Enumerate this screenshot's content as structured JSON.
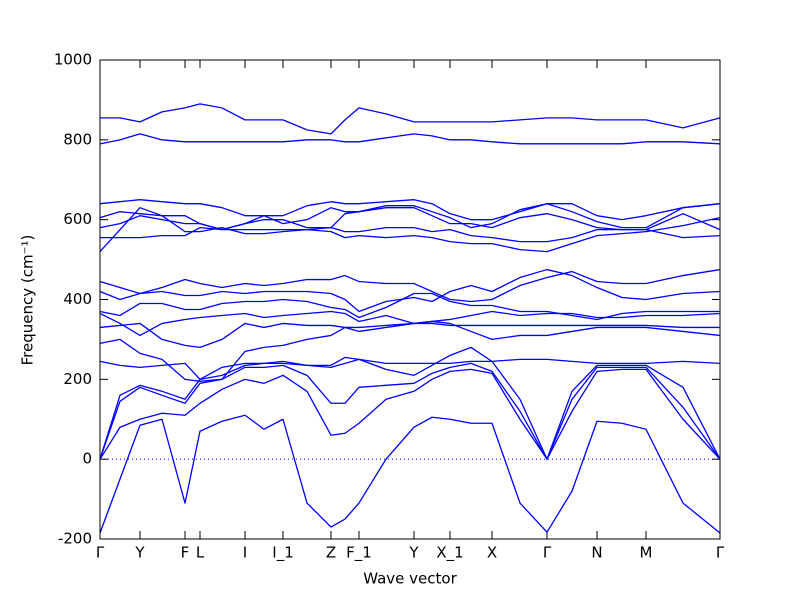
{
  "chart_data": {
    "type": "line",
    "xlabel": "Wave vector",
    "ylabel": "Frequency (cm⁻¹)",
    "xlim": [
      0,
      620
    ],
    "xticks": [
      {
        "value": 0,
        "label": "Γ"
      },
      {
        "value": 40,
        "label": "Y"
      },
      {
        "value": 85,
        "label": "F"
      },
      {
        "value": 100,
        "label": "L"
      },
      {
        "value": 145,
        "label": "I"
      },
      {
        "value": 183,
        "label": "I_1"
      },
      {
        "value": 231,
        "label": "Z"
      },
      {
        "value": 259,
        "label": "F_1"
      },
      {
        "value": 314,
        "label": "Y"
      },
      {
        "value": 350,
        "label": "X_1"
      },
      {
        "value": 392,
        "label": "X"
      },
      {
        "value": 447,
        "label": "Γ"
      },
      {
        "value": 497,
        "label": "N"
      },
      {
        "value": 546,
        "label": "M"
      },
      {
        "value": 620,
        "label": "Γ"
      }
    ],
    "ylim": [
      -200,
      1000
    ],
    "yticks": [
      -200,
      0,
      200,
      400,
      600,
      800,
      1000
    ],
    "x": [
      0,
      20,
      40,
      62,
      85,
      100,
      122,
      145,
      164,
      183,
      207,
      231,
      245,
      259,
      286,
      314,
      332,
      350,
      371,
      392,
      420,
      447,
      472,
      497,
      522,
      546,
      583,
      620
    ],
    "series": [
      {
        "color": "#0000ff",
        "values": [
          -185,
          -50,
          85,
          100,
          -110,
          70,
          95,
          110,
          75,
          100,
          -110,
          -170,
          -150,
          -110,
          0,
          80,
          105,
          100,
          90,
          90,
          -110,
          -183,
          -80,
          95,
          90,
          75,
          -110,
          -185
        ]
      },
      {
        "color": "#0000ff",
        "values": [
          0,
          80,
          100,
          115,
          110,
          140,
          175,
          200,
          190,
          210,
          170,
          60,
          65,
          90,
          150,
          170,
          200,
          220,
          225,
          215,
          100,
          0,
          120,
          220,
          225,
          225,
          100,
          0
        ]
      },
      {
        "color": "#0000ff",
        "values": [
          0,
          145,
          180,
          160,
          140,
          190,
          200,
          230,
          230,
          235,
          210,
          140,
          140,
          180,
          185,
          190,
          215,
          230,
          240,
          220,
          120,
          0,
          150,
          230,
          230,
          230,
          130,
          0
        ]
      },
      {
        "color": "#0000ff",
        "values": [
          0,
          160,
          185,
          170,
          150,
          200,
          210,
          235,
          240,
          240,
          235,
          230,
          240,
          250,
          225,
          210,
          235,
          260,
          280,
          245,
          150,
          0,
          170,
          235,
          235,
          235,
          180,
          0
        ]
      },
      {
        "color": "#0000ff",
        "values": [
          245,
          235,
          230,
          235,
          240,
          200,
          230,
          240,
          240,
          245,
          235,
          235,
          255,
          250,
          240,
          240,
          240,
          240,
          245,
          245,
          250,
          250,
          245,
          240,
          240,
          240,
          245,
          240
        ]
      },
      {
        "color": "#0000ff",
        "values": [
          290,
          300,
          265,
          250,
          200,
          195,
          200,
          270,
          280,
          285,
          300,
          310,
          330,
          320,
          330,
          340,
          345,
          340,
          320,
          300,
          310,
          310,
          320,
          330,
          330,
          330,
          320,
          310
        ]
      },
      {
        "color": "#0000ff",
        "values": [
          330,
          335,
          340,
          300,
          285,
          280,
          300,
          340,
          330,
          340,
          335,
          335,
          330,
          330,
          335,
          340,
          340,
          335,
          335,
          335,
          335,
          335,
          335,
          335,
          335,
          335,
          330,
          330
        ]
      },
      {
        "color": "#0000ff",
        "values": [
          365,
          340,
          310,
          340,
          350,
          355,
          360,
          365,
          355,
          360,
          365,
          370,
          365,
          345,
          360,
          340,
          345,
          350,
          360,
          370,
          360,
          365,
          365,
          355,
          355,
          360,
          360,
          365
        ]
      },
      {
        "color": "#0000ff",
        "values": [
          370,
          360,
          390,
          390,
          375,
          375,
          390,
          395,
          395,
          400,
          395,
          380,
          375,
          355,
          380,
          415,
          415,
          395,
          385,
          385,
          370,
          370,
          360,
          350,
          365,
          370,
          370,
          370
        ]
      },
      {
        "color": "#0000ff",
        "values": [
          420,
          400,
          415,
          420,
          410,
          410,
          420,
          415,
          420,
          420,
          420,
          415,
          400,
          370,
          395,
          405,
          395,
          420,
          435,
          420,
          455,
          475,
          460,
          430,
          405,
          400,
          415,
          420
        ]
      },
      {
        "color": "#0000ff",
        "values": [
          445,
          430,
          415,
          430,
          450,
          440,
          430,
          440,
          435,
          440,
          450,
          450,
          460,
          445,
          440,
          440,
          420,
          400,
          395,
          400,
          435,
          455,
          470,
          445,
          440,
          440,
          460,
          475
        ]
      },
      {
        "color": "#0000ff",
        "values": [
          520,
          575,
          630,
          610,
          570,
          570,
          580,
          565,
          565,
          570,
          575,
          570,
          555,
          560,
          555,
          560,
          555,
          545,
          540,
          540,
          525,
          520,
          540,
          560,
          565,
          570,
          585,
          605
        ]
      },
      {
        "color": "#0000ff",
        "values": [
          555,
          555,
          555,
          560,
          560,
          580,
          575,
          575,
          575,
          575,
          575,
          580,
          570,
          570,
          580,
          580,
          570,
          575,
          560,
          555,
          545,
          545,
          555,
          575,
          575,
          575,
          555,
          560
        ]
      },
      {
        "color": "#0000ff",
        "values": [
          580,
          590,
          610,
          600,
          590,
          590,
          575,
          590,
          600,
          600,
          580,
          580,
          615,
          620,
          630,
          630,
          610,
          590,
          590,
          580,
          605,
          615,
          600,
          580,
          575,
          575,
          615,
          575
        ]
      },
      {
        "color": "#0000ff",
        "values": [
          605,
          620,
          615,
          610,
          610,
          590,
          575,
          590,
          610,
          590,
          600,
          630,
          620,
          620,
          635,
          635,
          620,
          605,
          580,
          590,
          625,
          640,
          620,
          595,
          580,
          580,
          630,
          640
        ]
      },
      {
        "color": "#0000ff",
        "values": [
          640,
          645,
          650,
          645,
          640,
          640,
          630,
          610,
          610,
          610,
          635,
          645,
          640,
          640,
          645,
          650,
          640,
          615,
          600,
          600,
          620,
          640,
          640,
          610,
          600,
          610,
          630,
          640
        ]
      },
      {
        "color": "#0000ff",
        "values": [
          790,
          800,
          815,
          800,
          795,
          795,
          795,
          795,
          795,
          795,
          800,
          800,
          795,
          795,
          805,
          815,
          810,
          800,
          800,
          795,
          790,
          790,
          790,
          790,
          790,
          795,
          795,
          790
        ]
      },
      {
        "color": "#0000ff",
        "values": [
          855,
          855,
          845,
          870,
          880,
          890,
          880,
          850,
          850,
          850,
          825,
          815,
          850,
          880,
          865,
          845,
          845,
          845,
          845,
          845,
          850,
          855,
          855,
          850,
          850,
          850,
          830,
          855
        ]
      }
    ]
  }
}
